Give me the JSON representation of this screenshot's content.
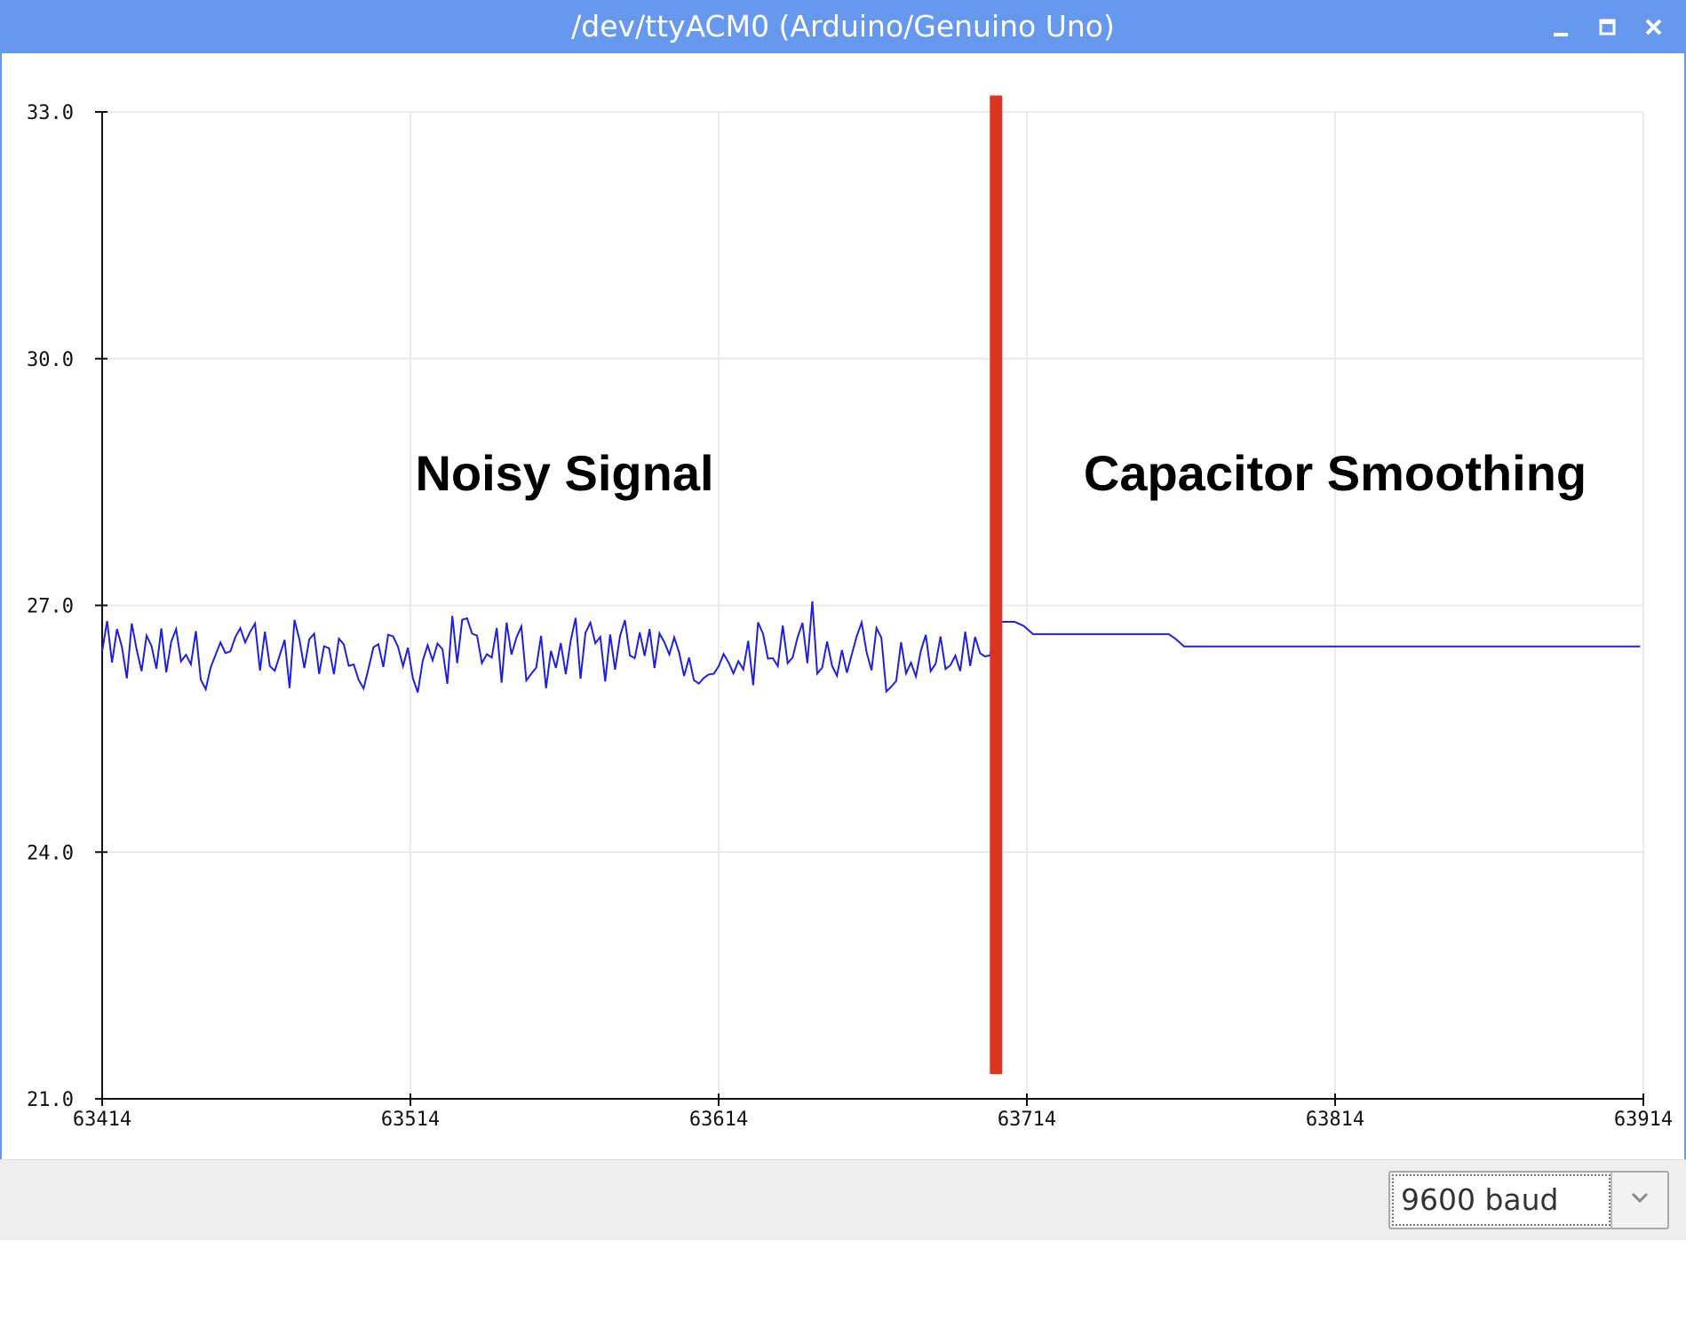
{
  "window": {
    "title": "/dev/ttyACM0 (Arduino/Genuino Uno)",
    "controls": [
      "minimize-icon",
      "maximize-icon",
      "close-icon"
    ]
  },
  "chart_data": {
    "type": "line",
    "title": "",
    "xlabel": "",
    "ylabel": "",
    "xlim": [
      63414,
      63914
    ],
    "ylim": [
      21.0,
      33.0
    ],
    "x_ticks": [
      "63414",
      "63514",
      "63614",
      "63714",
      "63814",
      "63914"
    ],
    "y_ticks": [
      "33.0",
      "30.0",
      "27.0",
      "24.0",
      "21.0"
    ],
    "grid": true,
    "series": [
      {
        "color": "#2020e0",
        "noisy_segment": {
          "x_start": 63414,
          "x_end": 63704,
          "mean": 26.4,
          "min": 25.7,
          "max": 27.1
        },
        "smooth_points": [
          [
            63704,
            26.8
          ],
          [
            63710,
            26.8
          ],
          [
            63713,
            26.75
          ],
          [
            63716,
            26.65
          ],
          [
            63760,
            26.65
          ],
          [
            63762,
            26.6
          ],
          [
            63765,
            26.5
          ],
          [
            63768,
            26.5
          ],
          [
            63770,
            26.5
          ],
          [
            63913,
            26.5
          ]
        ]
      }
    ],
    "divider": {
      "x": 63704,
      "color": "#dd3322",
      "y_top": 33.2,
      "y_bottom": 21.3
    },
    "annotations": [
      {
        "text": "Noisy Signal",
        "x": 63564,
        "y": 28.4
      },
      {
        "text": "Capacitor Smoothing",
        "x": 63814,
        "y": 28.4
      }
    ]
  },
  "footer": {
    "baud_value": "9600 baud",
    "dropdown_icon": "chevron-down-icon"
  }
}
